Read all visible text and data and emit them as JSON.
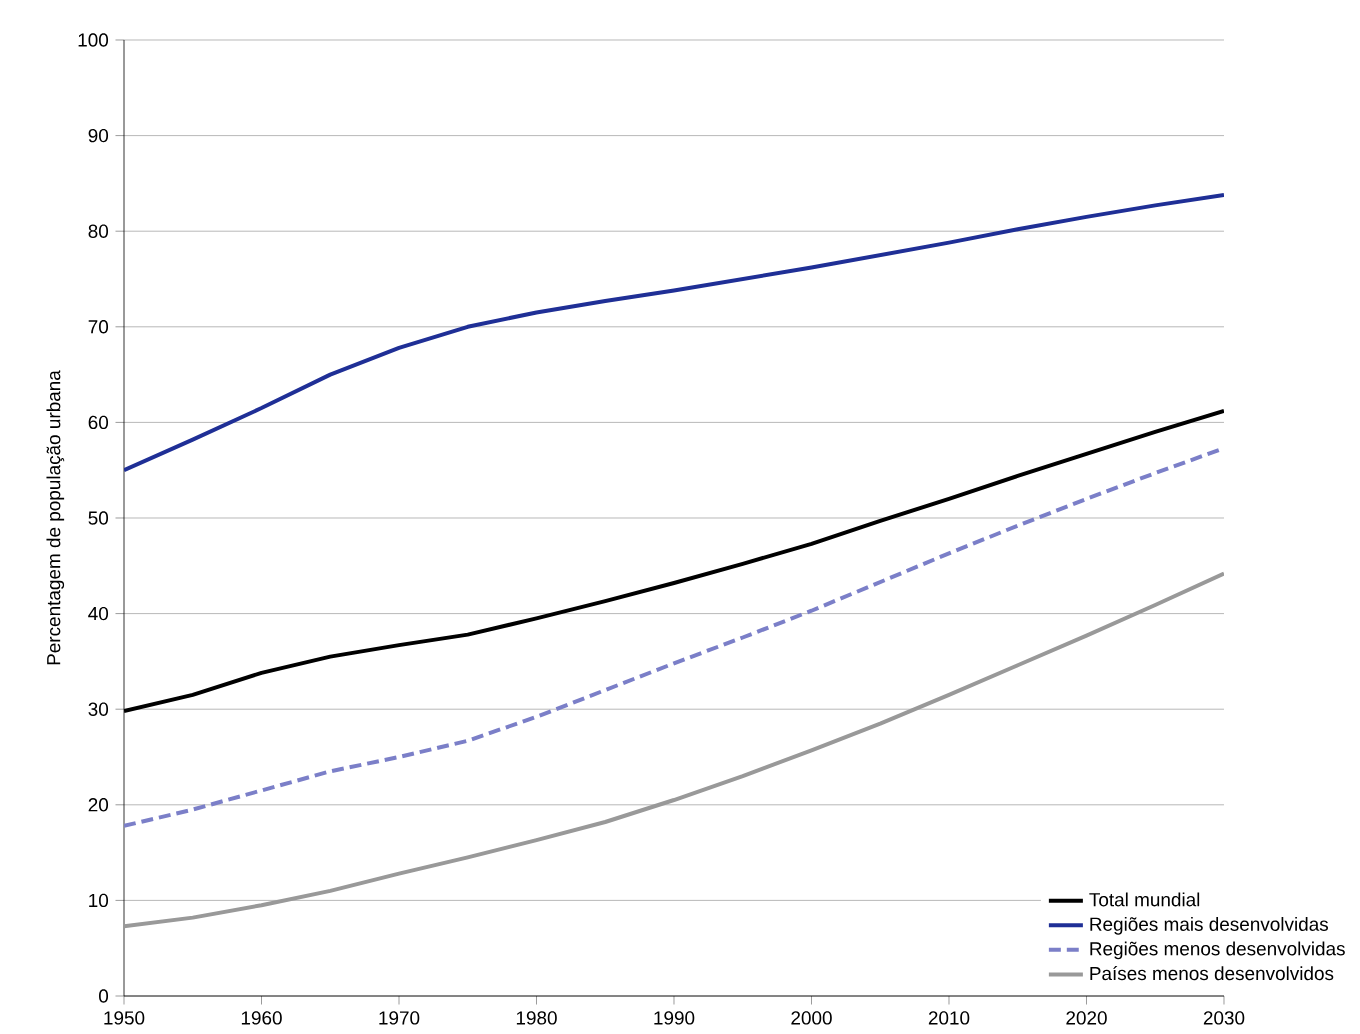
{
  "chart_data": {
    "type": "line",
    "ylabel": "Percentagem de população urbana",
    "x": [
      1950,
      1955,
      1960,
      1965,
      1970,
      1975,
      1980,
      1985,
      1990,
      1995,
      2000,
      2005,
      2010,
      2015,
      2020,
      2025,
      2030
    ],
    "series": [
      {
        "name": "Total mundial",
        "color": "#000000",
        "line_style": "solid",
        "values": [
          29.8,
          31.5,
          33.8,
          35.5,
          36.7,
          37.8,
          39.5,
          41.3,
          43.2,
          45.2,
          47.3,
          49.7,
          52.0,
          54.4,
          56.7,
          59.0,
          61.2
        ]
      },
      {
        "name": "Regiões mais desenvolvidas",
        "color": "#1f2f96",
        "line_style": "solid",
        "values": [
          55.0,
          58.2,
          61.5,
          65.0,
          67.8,
          70.0,
          71.5,
          72.7,
          73.8,
          75.0,
          76.2,
          77.5,
          78.8,
          80.2,
          81.5,
          82.7,
          83.8
        ]
      },
      {
        "name": "Regiões menos desenvolvidas",
        "color": "#7b7fc8",
        "line_style": "dashed",
        "values": [
          17.8,
          19.5,
          21.5,
          23.5,
          25.0,
          26.7,
          29.2,
          32.0,
          34.8,
          37.5,
          40.3,
          43.3,
          46.3,
          49.2,
          52.0,
          54.7,
          57.3
        ]
      },
      {
        "name": "Países menos desenvolvidos",
        "color": "#999999",
        "line_style": "solid",
        "values": [
          7.3,
          8.2,
          9.5,
          11.0,
          12.8,
          14.5,
          16.3,
          18.2,
          20.5,
          23.0,
          25.7,
          28.5,
          31.5,
          34.6,
          37.7,
          40.9,
          44.2
        ]
      }
    ],
    "xlim": [
      1950,
      2030
    ],
    "xticks": [
      1950,
      1960,
      1970,
      1980,
      1990,
      2000,
      2010,
      2020,
      2030
    ],
    "ylim": [
      0,
      100
    ],
    "yticks": [
      0,
      10,
      20,
      30,
      40,
      50,
      60,
      70,
      80,
      90,
      100
    ],
    "grid": "y",
    "legend": "bottom right",
    "marker": "none"
  }
}
